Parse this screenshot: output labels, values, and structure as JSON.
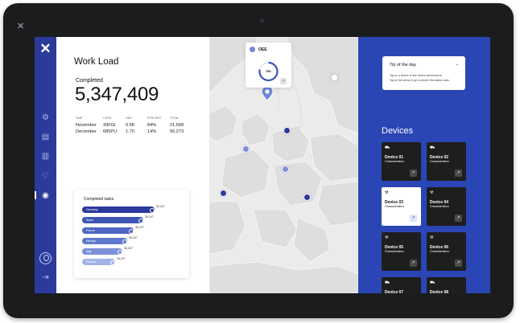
{
  "device_frame": {
    "brand_glyph": "✕"
  },
  "sidebar": {
    "logo_glyph": "✕",
    "items": [
      {
        "icon": "settings-icon",
        "glyph": "⚙"
      },
      {
        "icon": "inbox-icon",
        "glyph": "▤"
      },
      {
        "icon": "chart-icon",
        "glyph": "▥"
      },
      {
        "icon": "heart-icon",
        "glyph": "♡"
      },
      {
        "icon": "location-icon",
        "glyph": "◉",
        "active": true
      }
    ],
    "logout_glyph": "⇥"
  },
  "workload": {
    "title": "Work Load",
    "completed_label": "Completed",
    "completed_value": "5,347,409",
    "table": {
      "headers": [
        "TIME",
        "CODE",
        "UNIT",
        "PERCENT",
        "TOTAL"
      ],
      "rows": [
        [
          "November",
          "39FGI",
          "0.58",
          "84%",
          "21,568"
        ],
        [
          "December",
          "685PU",
          "1.70",
          "14%",
          "56,273"
        ]
      ]
    }
  },
  "completed_tasks": {
    "title": "Completed tasks",
    "items": [
      {
        "label": "Germany",
        "value": "36,247",
        "fraction": 1.0,
        "color": "#2b3a9b"
      },
      {
        "label": "Spain",
        "value": "36,247",
        "fraction": 0.84,
        "color": "#3f55b3"
      },
      {
        "label": "France",
        "value": "36,247",
        "fraction": 0.71,
        "color": "#4e66c2"
      },
      {
        "label": "Norway",
        "value": "36,247",
        "fraction": 0.62,
        "color": "#6079cc"
      },
      {
        "label": "Italy",
        "value": "36,247",
        "fraction": 0.55,
        "color": "#7c92d8"
      },
      {
        "label": "Finland",
        "value": "36,247",
        "fraction": 0.45,
        "color": "#a3b3e6"
      }
    ]
  },
  "oee": {
    "label": "OEE",
    "value": "78%",
    "fraction": 0.78
  },
  "tip": {
    "title": "Tip of the day",
    "lines": [
      "Tap on a device to see device performance.",
      "Tap on the arrow to go to device information data."
    ]
  },
  "devices": {
    "title": "Devices",
    "characteristics_label": "Characteristics",
    "items": [
      {
        "name": "Device 01",
        "icon": "bus-icon",
        "glyph": "⛟"
      },
      {
        "name": "Device 02",
        "icon": "bus-icon",
        "glyph": "⛟"
      },
      {
        "name": "Device 03",
        "icon": "robot-arm-icon",
        "glyph": "⚒",
        "selected": true
      },
      {
        "name": "Device 04",
        "icon": "robot-arm-icon",
        "glyph": "⚒"
      },
      {
        "name": "Device 05",
        "icon": "robot-arm-icon",
        "glyph": "⚒"
      },
      {
        "name": "Device 06",
        "icon": "robot-arm-icon",
        "glyph": "⚒"
      },
      {
        "name": "Device 07",
        "icon": "bus-icon",
        "glyph": "⛟"
      },
      {
        "name": "Device 08",
        "icon": "bus-icon",
        "glyph": "⛟"
      }
    ]
  }
}
